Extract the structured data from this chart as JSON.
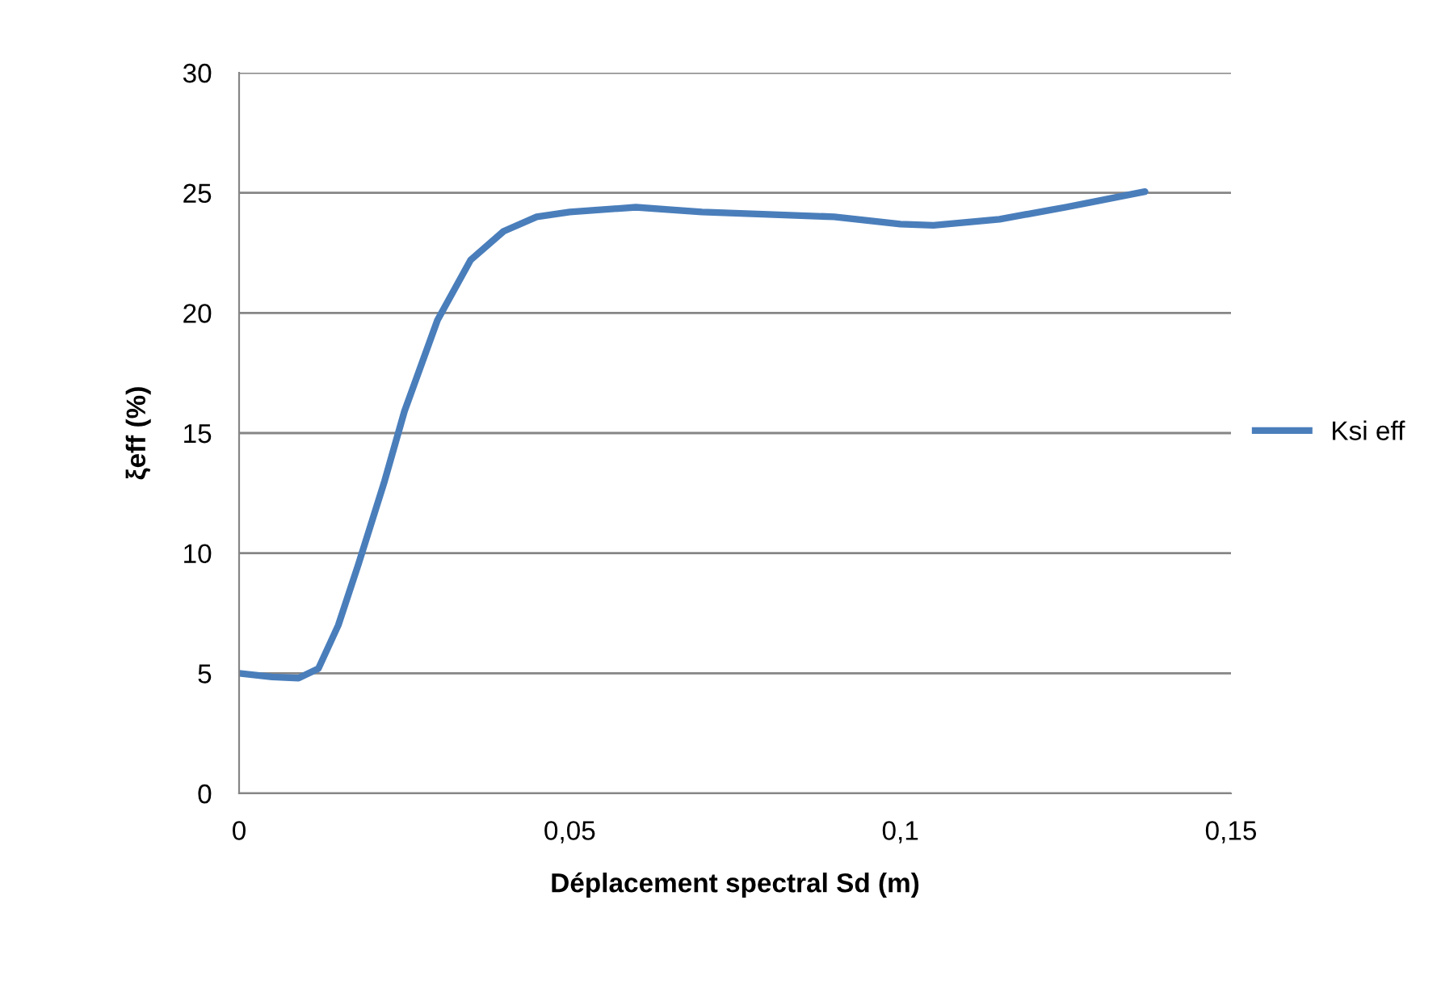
{
  "chart_data": {
    "type": "line",
    "xlabel": "Déplacement spectral Sd (m)",
    "ylabel": "ξeff (%)",
    "xlim": [
      0,
      0.15
    ],
    "xticks": [
      {
        "value": 0,
        "label": "0"
      },
      {
        "value": 0.05,
        "label": "0,05"
      },
      {
        "value": 0.1,
        "label": "0,1"
      },
      {
        "value": 0.15,
        "label": "0,15"
      }
    ],
    "ylim": [
      0,
      30
    ],
    "yticks": [
      0,
      5,
      10,
      15,
      20,
      25,
      30
    ],
    "grid": "y",
    "legend": "right",
    "marker": "none",
    "line_style": "solid",
    "series": [
      {
        "name": "Ksi eff",
        "color": "#4a7ebb",
        "x": [
          0,
          0.005,
          0.009,
          0.012,
          0.015,
          0.018,
          0.022,
          0.025,
          0.03,
          0.035,
          0.04,
          0.045,
          0.05,
          0.06,
          0.07,
          0.08,
          0.09,
          0.1,
          0.105,
          0.115,
          0.125,
          0.137
        ],
        "values": [
          5,
          4.85,
          4.8,
          5.2,
          7,
          9.5,
          13,
          15.9,
          19.7,
          22.2,
          23.4,
          24,
          24.2,
          24.4,
          24.2,
          24.1,
          24,
          23.7,
          23.65,
          23.9,
          24.4,
          25.05
        ]
      }
    ]
  }
}
